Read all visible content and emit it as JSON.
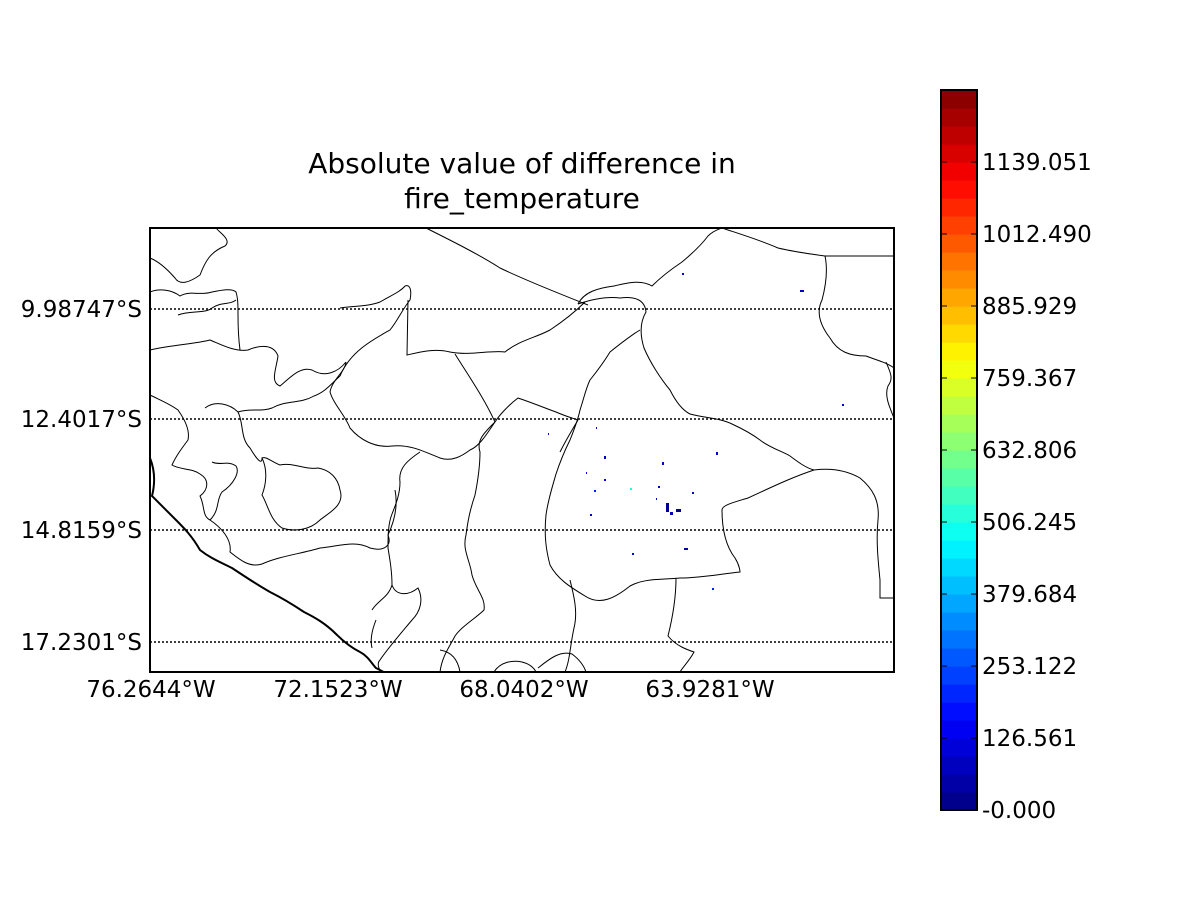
{
  "title": {
    "line1": "Absolute value of difference in",
    "line2": "fire_temperature"
  },
  "map": {
    "lat_labels": [
      "9.98747°S",
      "12.4017°S",
      "14.8159°S",
      "17.2301°S"
    ],
    "lon_labels": [
      "76.2644°W",
      "72.1523°W",
      "68.0402°W",
      "63.9281°W"
    ],
    "gridline_style": "dotted",
    "colors": {
      "boundaries": "#000000",
      "background": "#ffffff"
    }
  },
  "colorbar": {
    "colormap": "jet",
    "tick_labels": [
      "-0.000",
      "126.561",
      "253.122",
      "379.684",
      "506.245",
      "632.806",
      "759.367",
      "885.929",
      "1012.490",
      "1139.051"
    ],
    "min": 0,
    "max": 1265.6,
    "levels": 40
  },
  "chart_data": {
    "type": "heatmap",
    "title": "Absolute value of difference in fire_temperature",
    "xlabel": "",
    "ylabel": "",
    "x_ticks": [
      "76.2644°W",
      "72.1523°W",
      "68.0402°W",
      "63.9281°W"
    ],
    "y_ticks": [
      "9.98747°S",
      "12.4017°S",
      "14.8159°S",
      "17.2301°S"
    ],
    "colorbar_ticks": [
      0,
      126.561,
      253.122,
      379.684,
      506.245,
      632.806,
      759.367,
      885.929,
      1012.49,
      1139.051
    ],
    "colorbar_range": [
      0,
      1265.6
    ]
  }
}
